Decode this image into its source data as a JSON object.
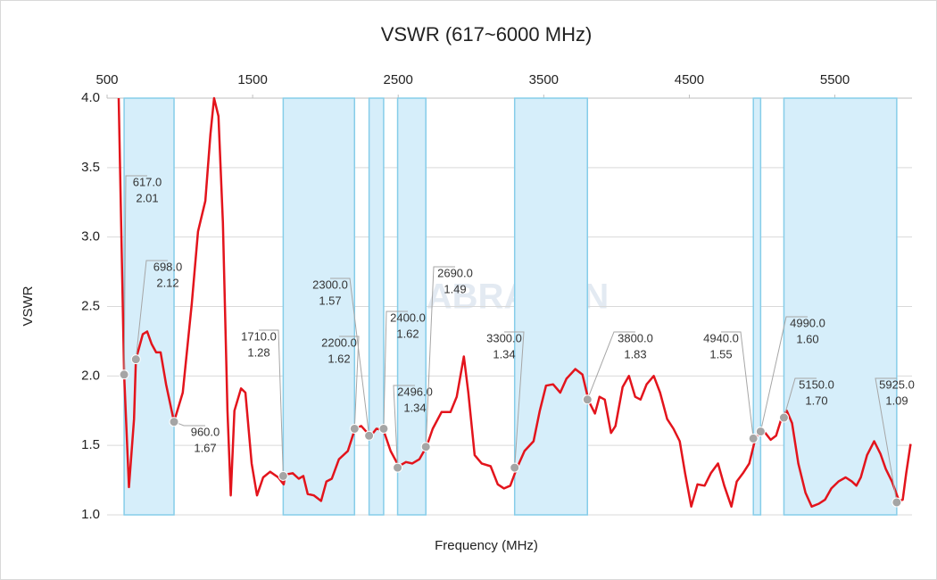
{
  "chart_data": {
    "type": "line",
    "title": "VSWR (617~6000 MHz)",
    "x_label": "Frequency (MHz)",
    "y_label": "VSWR",
    "watermark": "ABRACON",
    "color": "#e3141c",
    "xlim": [
      500,
      6030
    ],
    "xticks": [
      500,
      1500,
      2500,
      3500,
      4500,
      5500
    ],
    "ylim": [
      1.0,
      4.0
    ],
    "yticks": [
      {
        "value": 1,
        "label": "1.0"
      },
      1.5,
      {
        "value": 2,
        "label": "2.0"
      },
      2.5,
      {
        "value": 3,
        "label": "3.0"
      },
      3.5,
      {
        "value": 4,
        "label": "4.0"
      }
    ],
    "grid": true,
    "band_color": "#d6eefa",
    "bands": [
      [
        617,
        960
      ],
      [
        1710,
        2200
      ],
      [
        2300,
        2400
      ],
      [
        2496,
        2690
      ],
      [
        3300,
        3800
      ],
      [
        4940,
        4990
      ],
      [
        5150,
        5925
      ]
    ],
    "x": [
      580,
      617,
      650,
      685,
      698,
      745,
      775,
      806,
      837,
      868,
      905,
      960,
      1020,
      1082,
      1125,
      1175,
      1210,
      1235,
      1265,
      1296,
      1327,
      1350,
      1375,
      1420,
      1450,
      1493,
      1530,
      1572,
      1620,
      1676,
      1713,
      1725,
      1775,
      1817,
      1848,
      1878,
      1921,
      1970,
      2007,
      2044,
      2093,
      2154,
      2203,
      2246,
      2289,
      2313,
      2350,
      2399,
      2448,
      2504,
      2553,
      2596,
      2645,
      2694,
      2737,
      2798,
      2859,
      2902,
      2951,
      2982,
      3025,
      3074,
      3135,
      3184,
      3227,
      3270,
      3313,
      3368,
      3430,
      3473,
      3516,
      3564,
      3613,
      3656,
      3717,
      3766,
      3809,
      3852,
      3883,
      3919,
      3962,
      3993,
      4042,
      4085,
      4128,
      4165,
      4207,
      4256,
      4299,
      4348,
      4391,
      4434,
      4471,
      4513,
      4556,
      4605,
      4648,
      4697,
      4740,
      4789,
      4826,
      4869,
      4912,
      4949,
      4985,
      5022,
      5059,
      5096,
      5132,
      5169,
      5206,
      5249,
      5298,
      5341,
      5390,
      5433,
      5476,
      5525,
      5574,
      5617,
      5648,
      5678,
      5721,
      5770,
      5813,
      5850,
      5892,
      5941,
      5966,
      5990,
      6020
    ],
    "values": [
      4.0,
      2.01,
      1.2,
      1.69,
      2.12,
      2.3,
      2.32,
      2.23,
      2.17,
      2.17,
      1.94,
      1.67,
      1.88,
      2.52,
      3.04,
      3.26,
      3.74,
      4.0,
      3.87,
      3.1,
      1.75,
      1.14,
      1.75,
      1.91,
      1.88,
      1.37,
      1.14,
      1.27,
      1.31,
      1.27,
      1.22,
      1.29,
      1.3,
      1.26,
      1.28,
      1.15,
      1.14,
      1.1,
      1.24,
      1.26,
      1.4,
      1.46,
      1.62,
      1.64,
      1.59,
      1.57,
      1.62,
      1.61,
      1.46,
      1.35,
      1.38,
      1.37,
      1.4,
      1.49,
      1.62,
      1.74,
      1.74,
      1.85,
      2.14,
      1.88,
      1.43,
      1.37,
      1.35,
      1.22,
      1.19,
      1.21,
      1.33,
      1.46,
      1.53,
      1.75,
      1.93,
      1.94,
      1.88,
      1.98,
      2.05,
      2.01,
      1.82,
      1.73,
      1.85,
      1.83,
      1.59,
      1.64,
      1.92,
      2.0,
      1.85,
      1.83,
      1.94,
      2.0,
      1.88,
      1.69,
      1.62,
      1.53,
      1.3,
      1.06,
      1.22,
      1.21,
      1.3,
      1.37,
      1.21,
      1.06,
      1.24,
      1.3,
      1.37,
      1.53,
      1.61,
      1.59,
      1.54,
      1.57,
      1.69,
      1.75,
      1.66,
      1.37,
      1.16,
      1.06,
      1.08,
      1.11,
      1.19,
      1.24,
      1.27,
      1.24,
      1.21,
      1.27,
      1.43,
      1.53,
      1.44,
      1.33,
      1.24,
      1.1,
      1.11,
      1.3,
      1.51
    ],
    "markers": {
      "x": [
        617,
        698,
        960,
        1710,
        2200,
        2300,
        2400,
        2496,
        2690,
        3300,
        3800,
        4940,
        4990,
        5150,
        5925
      ],
      "x_labels": [
        "617.0",
        "698.0",
        "960.0",
        "1710.0",
        "2200.0",
        "2300.0",
        "2400.0",
        "2496.0",
        "2690.0",
        "3300.0",
        "3800.0",
        "4940.0",
        "4990.0",
        "5150.0",
        "5925.0"
      ],
      "values": [
        2.01,
        2.12,
        1.67,
        1.28,
        1.62,
        1.57,
        1.62,
        1.34,
        1.49,
        1.34,
        1.83,
        1.55,
        1.6,
        1.7,
        1.09
      ],
      "value_labels": [
        "2.01",
        "2.12",
        "1.67",
        "1.28",
        "1.62",
        "1.57",
        "1.62",
        "1.34",
        "1.49",
        "1.34",
        "1.83",
        "1.55",
        "1.60",
        "1.70",
        "1.09"
      ]
    }
  }
}
